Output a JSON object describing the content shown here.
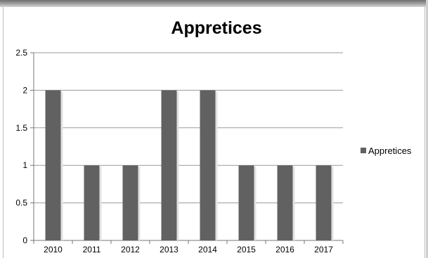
{
  "chart_data": {
    "type": "bar",
    "title": "Appretices",
    "categories": [
      "2010",
      "2011",
      "2012",
      "2013",
      "2014",
      "2015",
      "2016",
      "2017"
    ],
    "series": [
      {
        "name": "Appretices",
        "values": [
          2,
          1,
          1,
          2,
          2,
          1,
          1,
          1
        ],
        "color": "#616161"
      }
    ],
    "yticks": [
      "0",
      "0.5",
      "1",
      "1.5",
      "2",
      "2.5"
    ],
    "ylim": [
      0,
      2.5
    ],
    "grid": true,
    "legend_position": "right"
  }
}
